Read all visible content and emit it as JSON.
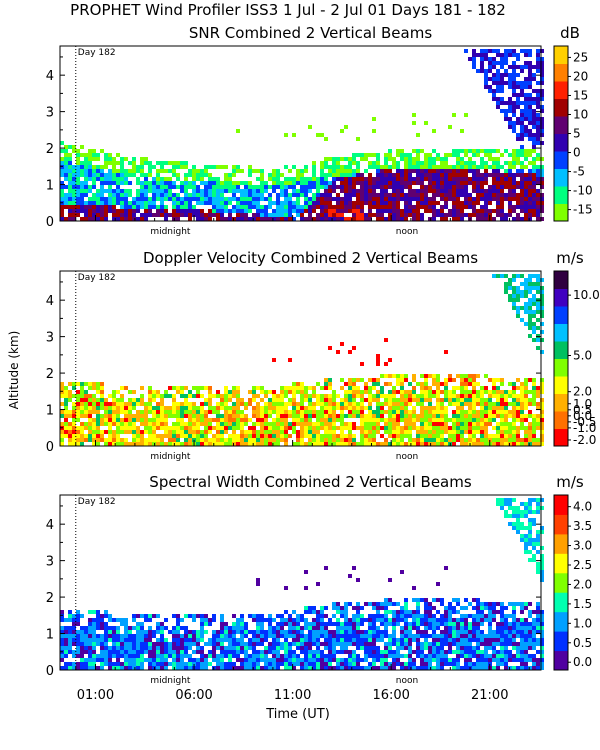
{
  "page_title": "PROPHET Wind Profiler ISS3    1 Jul -  2 Jul 01 Days 181 - 182",
  "y_axis_label": "Altitude (km)",
  "x_axis_label": "Time (UT)",
  "x_ticks": [
    "01:00",
    "06:00",
    "11:00",
    "16:00",
    "21:00"
  ],
  "x_tick_hours": [
    1,
    6,
    11,
    16,
    21
  ],
  "x_range_hours": [
    -0.8,
    23.6
  ],
  "day_marker_hour": 0,
  "midnight_label": "midnight",
  "noon_label": "noon",
  "midnight_hour": 4.8,
  "noon_hour": 16.8,
  "colors": {
    "snr": [
      "#7fff00",
      "#00ff7f",
      "#00bfff",
      "#0040ff",
      "#3000b0",
      "#600070",
      "#a00000",
      "#ff2000",
      "#ff8000",
      "#ffd000"
    ],
    "velocity": [
      "#ff0000",
      "#ff7000",
      "#ffb000",
      "#ffff00",
      "#7fff00",
      "#00c060",
      "#00c0ff",
      "#0040ff",
      "#4000c0",
      "#300040"
    ],
    "width": [
      "#5000a0",
      "#0030ff",
      "#00a0ff",
      "#00ffb0",
      "#80ff00",
      "#ffff00",
      "#ffa000",
      "#ff4000",
      "#ff0000"
    ]
  },
  "chart_data": [
    {
      "type": "heatmap",
      "title": "SNR Combined 2 Vertical Beams",
      "unit": "dB",
      "day_label": "Day 182",
      "xlabel": "",
      "ylabel": "Altitude (km)",
      "ylim": [
        0,
        4.8
      ],
      "yticks": [
        "0",
        "1",
        "2",
        "3",
        "4"
      ],
      "colorbar_ticks": [
        "25",
        "20",
        "15",
        "10",
        "5",
        "0",
        "-5",
        "-10",
        "-15"
      ],
      "colorbar_values": [
        25,
        20,
        15,
        10,
        5,
        0,
        -5,
        -10,
        -15
      ],
      "colorbar_range": [
        -18,
        28
      ],
      "layers": [
        {
          "name": "boundary layer top",
          "x_hours": [
            -0.8,
            4,
            10,
            13,
            16,
            20,
            23.6
          ],
          "top_km": [
            2.2,
            1.7,
            1.5,
            1.8,
            2.0,
            2.0,
            2.0
          ]
        },
        {
          "name": "strong echo top",
          "x_hours": [
            -0.8,
            8,
            11,
            13,
            17,
            20,
            23.6
          ],
          "top_km": [
            0.5,
            0.3,
            0.1,
            1.2,
            1.6,
            1.5,
            1.3
          ]
        },
        {
          "name": "upper echo region",
          "x_hours": [
            19.5,
            23.6
          ],
          "top_km": [
            4.8,
            4.8
          ]
        }
      ]
    },
    {
      "type": "heatmap",
      "title": "Doppler Velocity Combined 2 Vertical Beams",
      "unit": "m/s",
      "day_label": "Day 182",
      "xlabel": "",
      "ylabel": "Altitude (km)",
      "ylim": [
        0,
        4.8
      ],
      "yticks": [
        "0",
        "1",
        "2",
        "3",
        "4"
      ],
      "colorbar_ticks": [
        "10.0",
        "5.0",
        "2.0",
        "1.0",
        "0.5",
        "0.0",
        "-0.5",
        "-1.0",
        "-2.0"
      ],
      "colorbar_values": [
        10.0,
        5.0,
        2.0,
        1.0,
        0.5,
        0.0,
        -0.5,
        -1.0,
        -2.0
      ],
      "colorbar_range": [
        -2.5,
        12
      ],
      "layers": [
        {
          "name": "boundary layer top",
          "x_hours": [
            -0.8,
            4,
            10,
            13,
            16,
            20,
            23.6
          ],
          "top_km": [
            1.8,
            1.7,
            1.7,
            1.9,
            2.0,
            2.0,
            1.9
          ]
        },
        {
          "name": "upper echo region",
          "x_hours": [
            21,
            23.6
          ],
          "top_km": [
            4.8,
            4.8
          ]
        }
      ]
    },
    {
      "type": "heatmap",
      "title": "Spectral Width Combined 2 Vertical Beams",
      "unit": "m/s",
      "day_label": "Day 182",
      "xlabel": "Time (UT)",
      "ylabel": "Altitude (km)",
      "ylim": [
        0,
        4.8
      ],
      "yticks": [
        "0",
        "1",
        "2",
        "3",
        "4"
      ],
      "colorbar_ticks": [
        "4.0",
        "3.5",
        "3.0",
        "2.5",
        "2.0",
        "1.5",
        "1.0",
        "0.5",
        "0.0"
      ],
      "colorbar_values": [
        4.0,
        3.5,
        3.0,
        2.5,
        2.0,
        1.5,
        1.0,
        0.5,
        0.0
      ],
      "colorbar_range": [
        -0.2,
        4.3
      ],
      "layers": [
        {
          "name": "boundary layer top",
          "x_hours": [
            -0.8,
            4,
            10,
            13,
            16,
            20,
            23.6
          ],
          "top_km": [
            1.7,
            1.6,
            1.6,
            1.9,
            2.0,
            2.0,
            1.9
          ]
        },
        {
          "name": "upper echo region",
          "x_hours": [
            21,
            23.6
          ],
          "top_km": [
            4.8,
            4.8
          ]
        }
      ]
    }
  ]
}
